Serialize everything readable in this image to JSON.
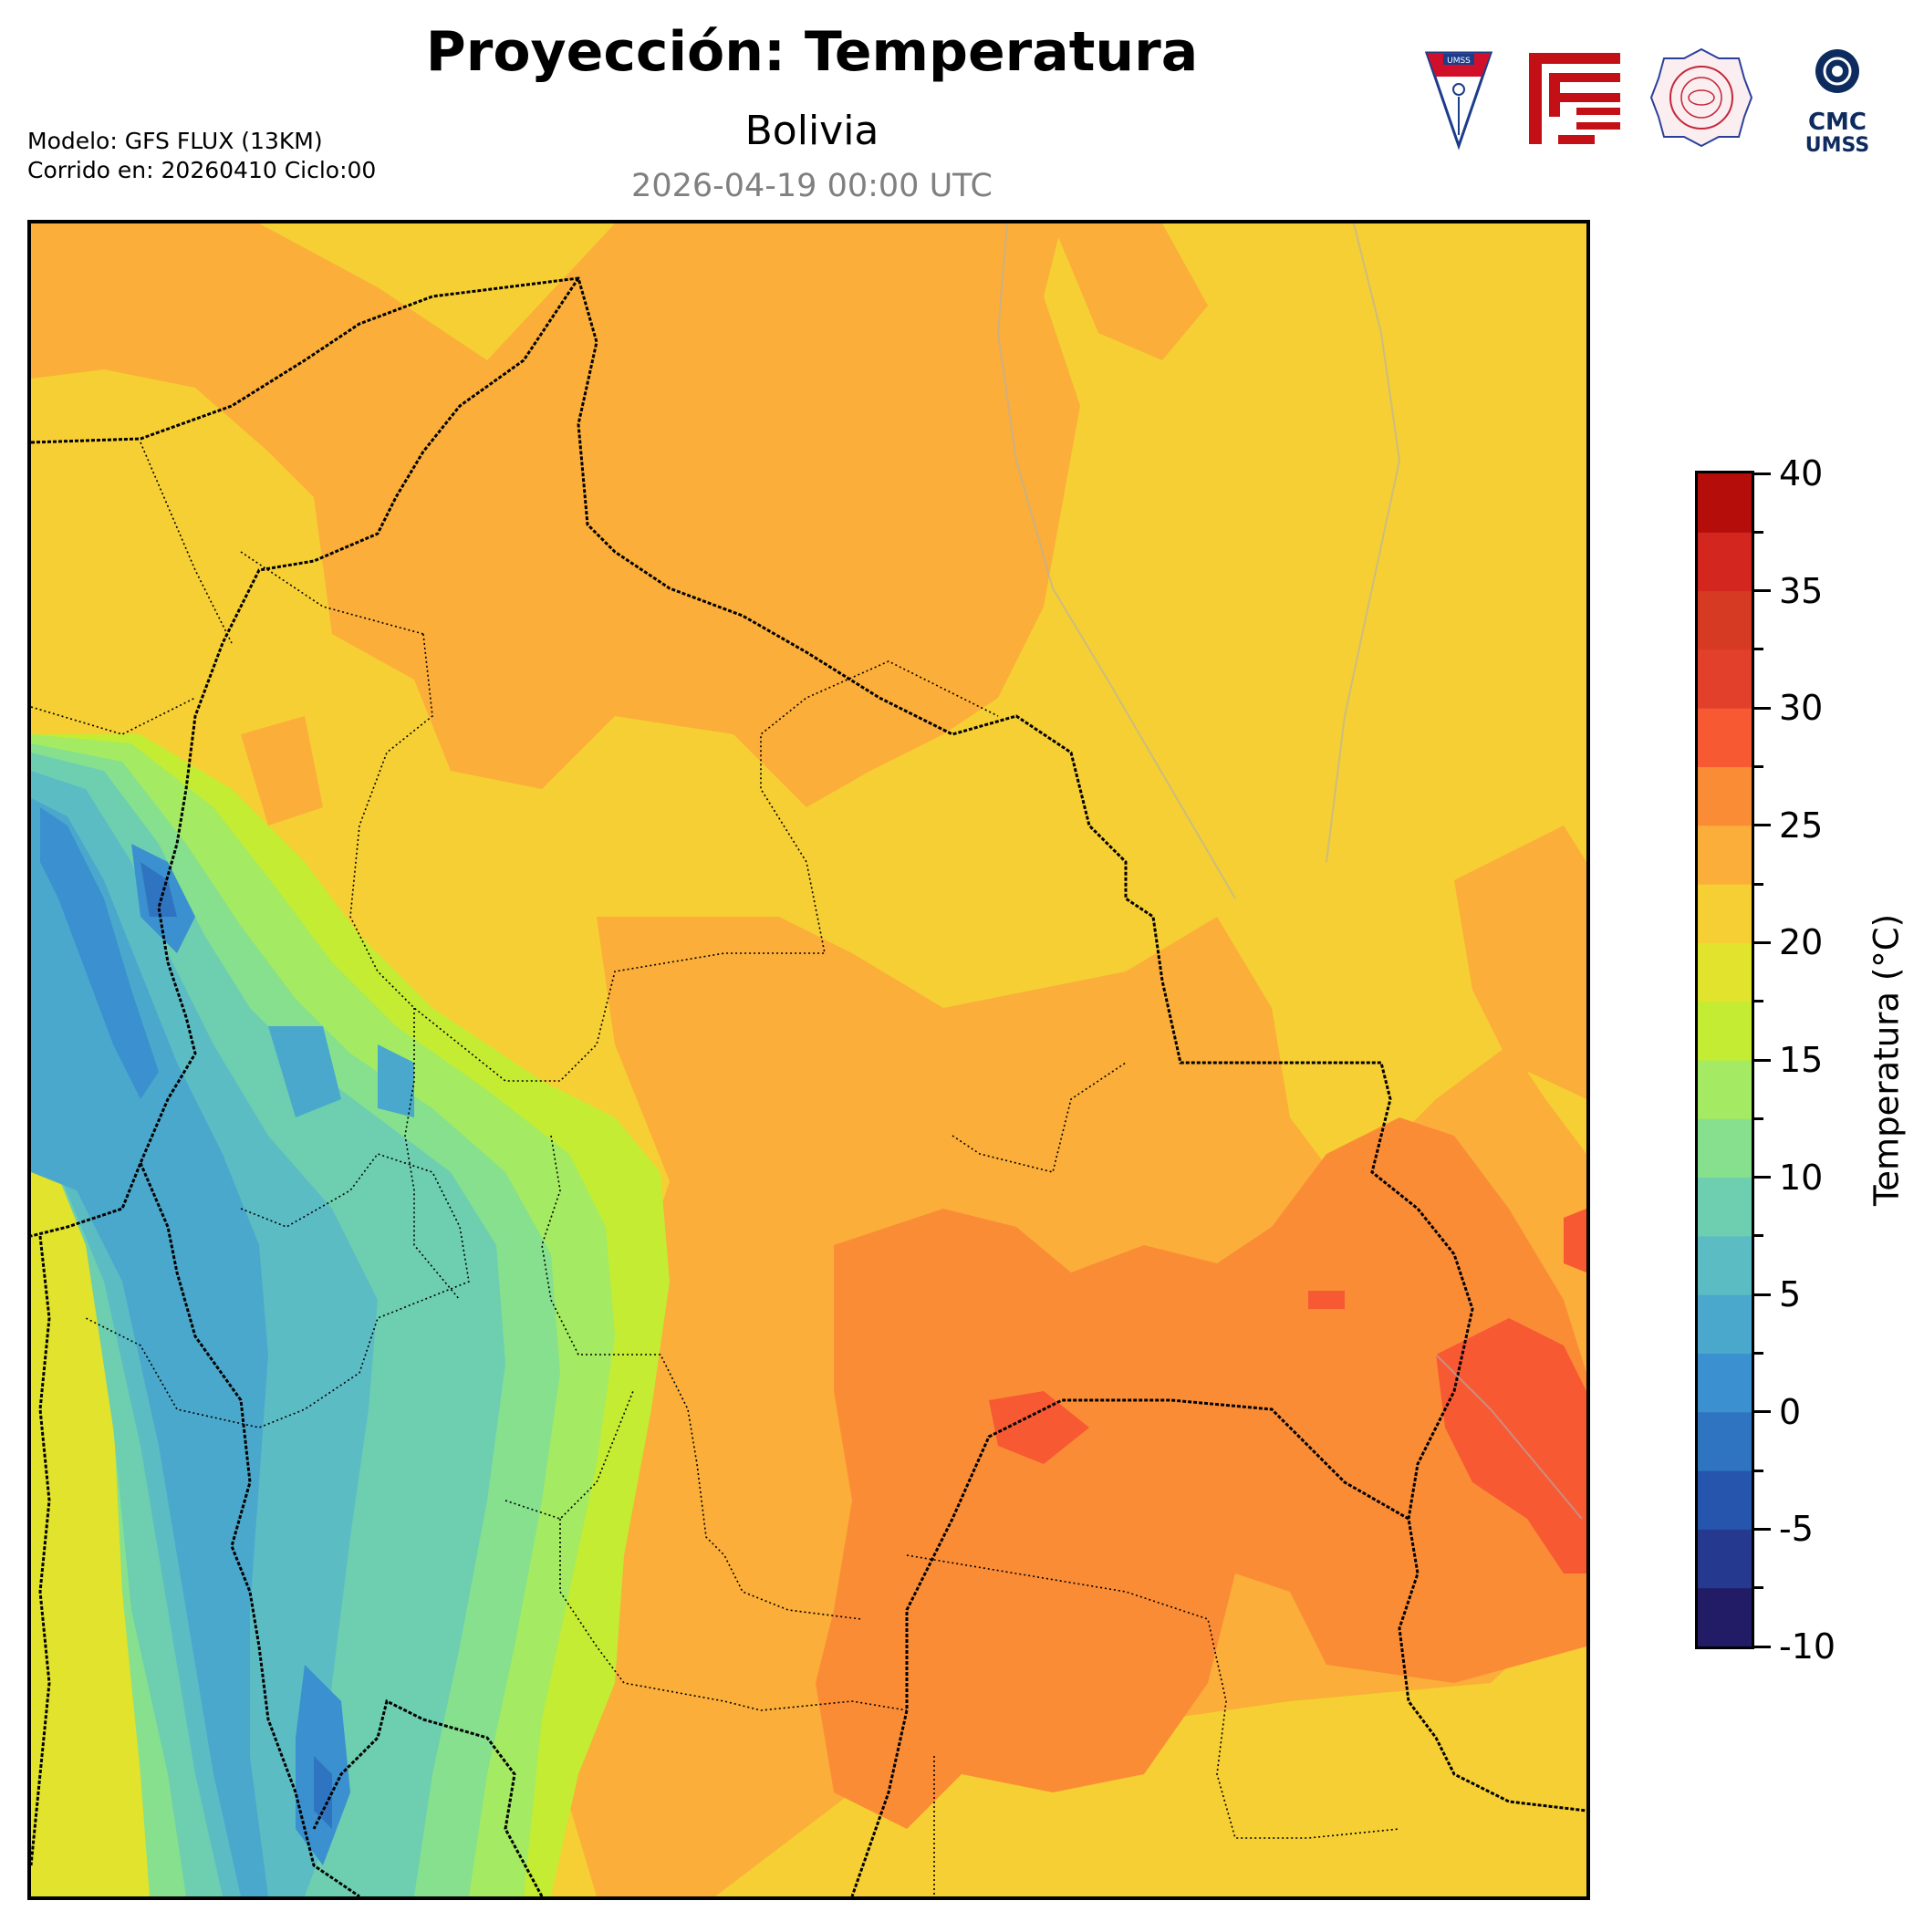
{
  "header": {
    "title": "Proyección: Temperatura",
    "region": "Bolivia",
    "datetime": "2026-04-19 00:00 UTC",
    "model_line": "Modelo: GFS FLUX (13KM)",
    "run_line": "Corrido en: 20260410 Ciclo:00"
  },
  "logos": [
    {
      "name": "umss-shield-logo",
      "text": "UMSS"
    },
    {
      "name": "red-emblem-logo",
      "text": ""
    },
    {
      "name": "departamento-fisica-seal-logo",
      "text": ""
    },
    {
      "name": "cmc-umss-logo",
      "text": "CMC UMSS"
    }
  ],
  "colorbar": {
    "label": "Temperatura (°C)",
    "min": -10,
    "max": 40,
    "step": 2.5,
    "tick_labels": [
      "40",
      "35",
      "30",
      "25",
      "20",
      "15",
      "10",
      "5",
      "0",
      "-5",
      "-10"
    ],
    "colors": [
      "#221b66",
      "#253a8f",
      "#2555ad",
      "#2f74c0",
      "#3b90cf",
      "#4aa8cc",
      "#5cbcc4",
      "#6dcfaf",
      "#86e08e",
      "#a4ea62",
      "#c4ec33",
      "#e1e32c",
      "#f6cf34",
      "#fbae39",
      "#fb8c36",
      "#f75933",
      "#e2402b",
      "#d63a22",
      "#d2261e",
      "#b40d0a"
    ]
  },
  "map": {
    "region": "Bolivia",
    "zones": [
      {
        "name": "altiplano-coldest",
        "temp_range": "-2.5 to 2.5"
      },
      {
        "name": "altiplano-cold",
        "temp_range": "2.5 to 7.5"
      },
      {
        "name": "andes-mild",
        "temp_range": "7.5 to 15"
      },
      {
        "name": "lowlands-warm",
        "temp_range": "20 to 25"
      },
      {
        "name": "chaco-hot",
        "temp_range": "25 to 30"
      }
    ]
  }
}
